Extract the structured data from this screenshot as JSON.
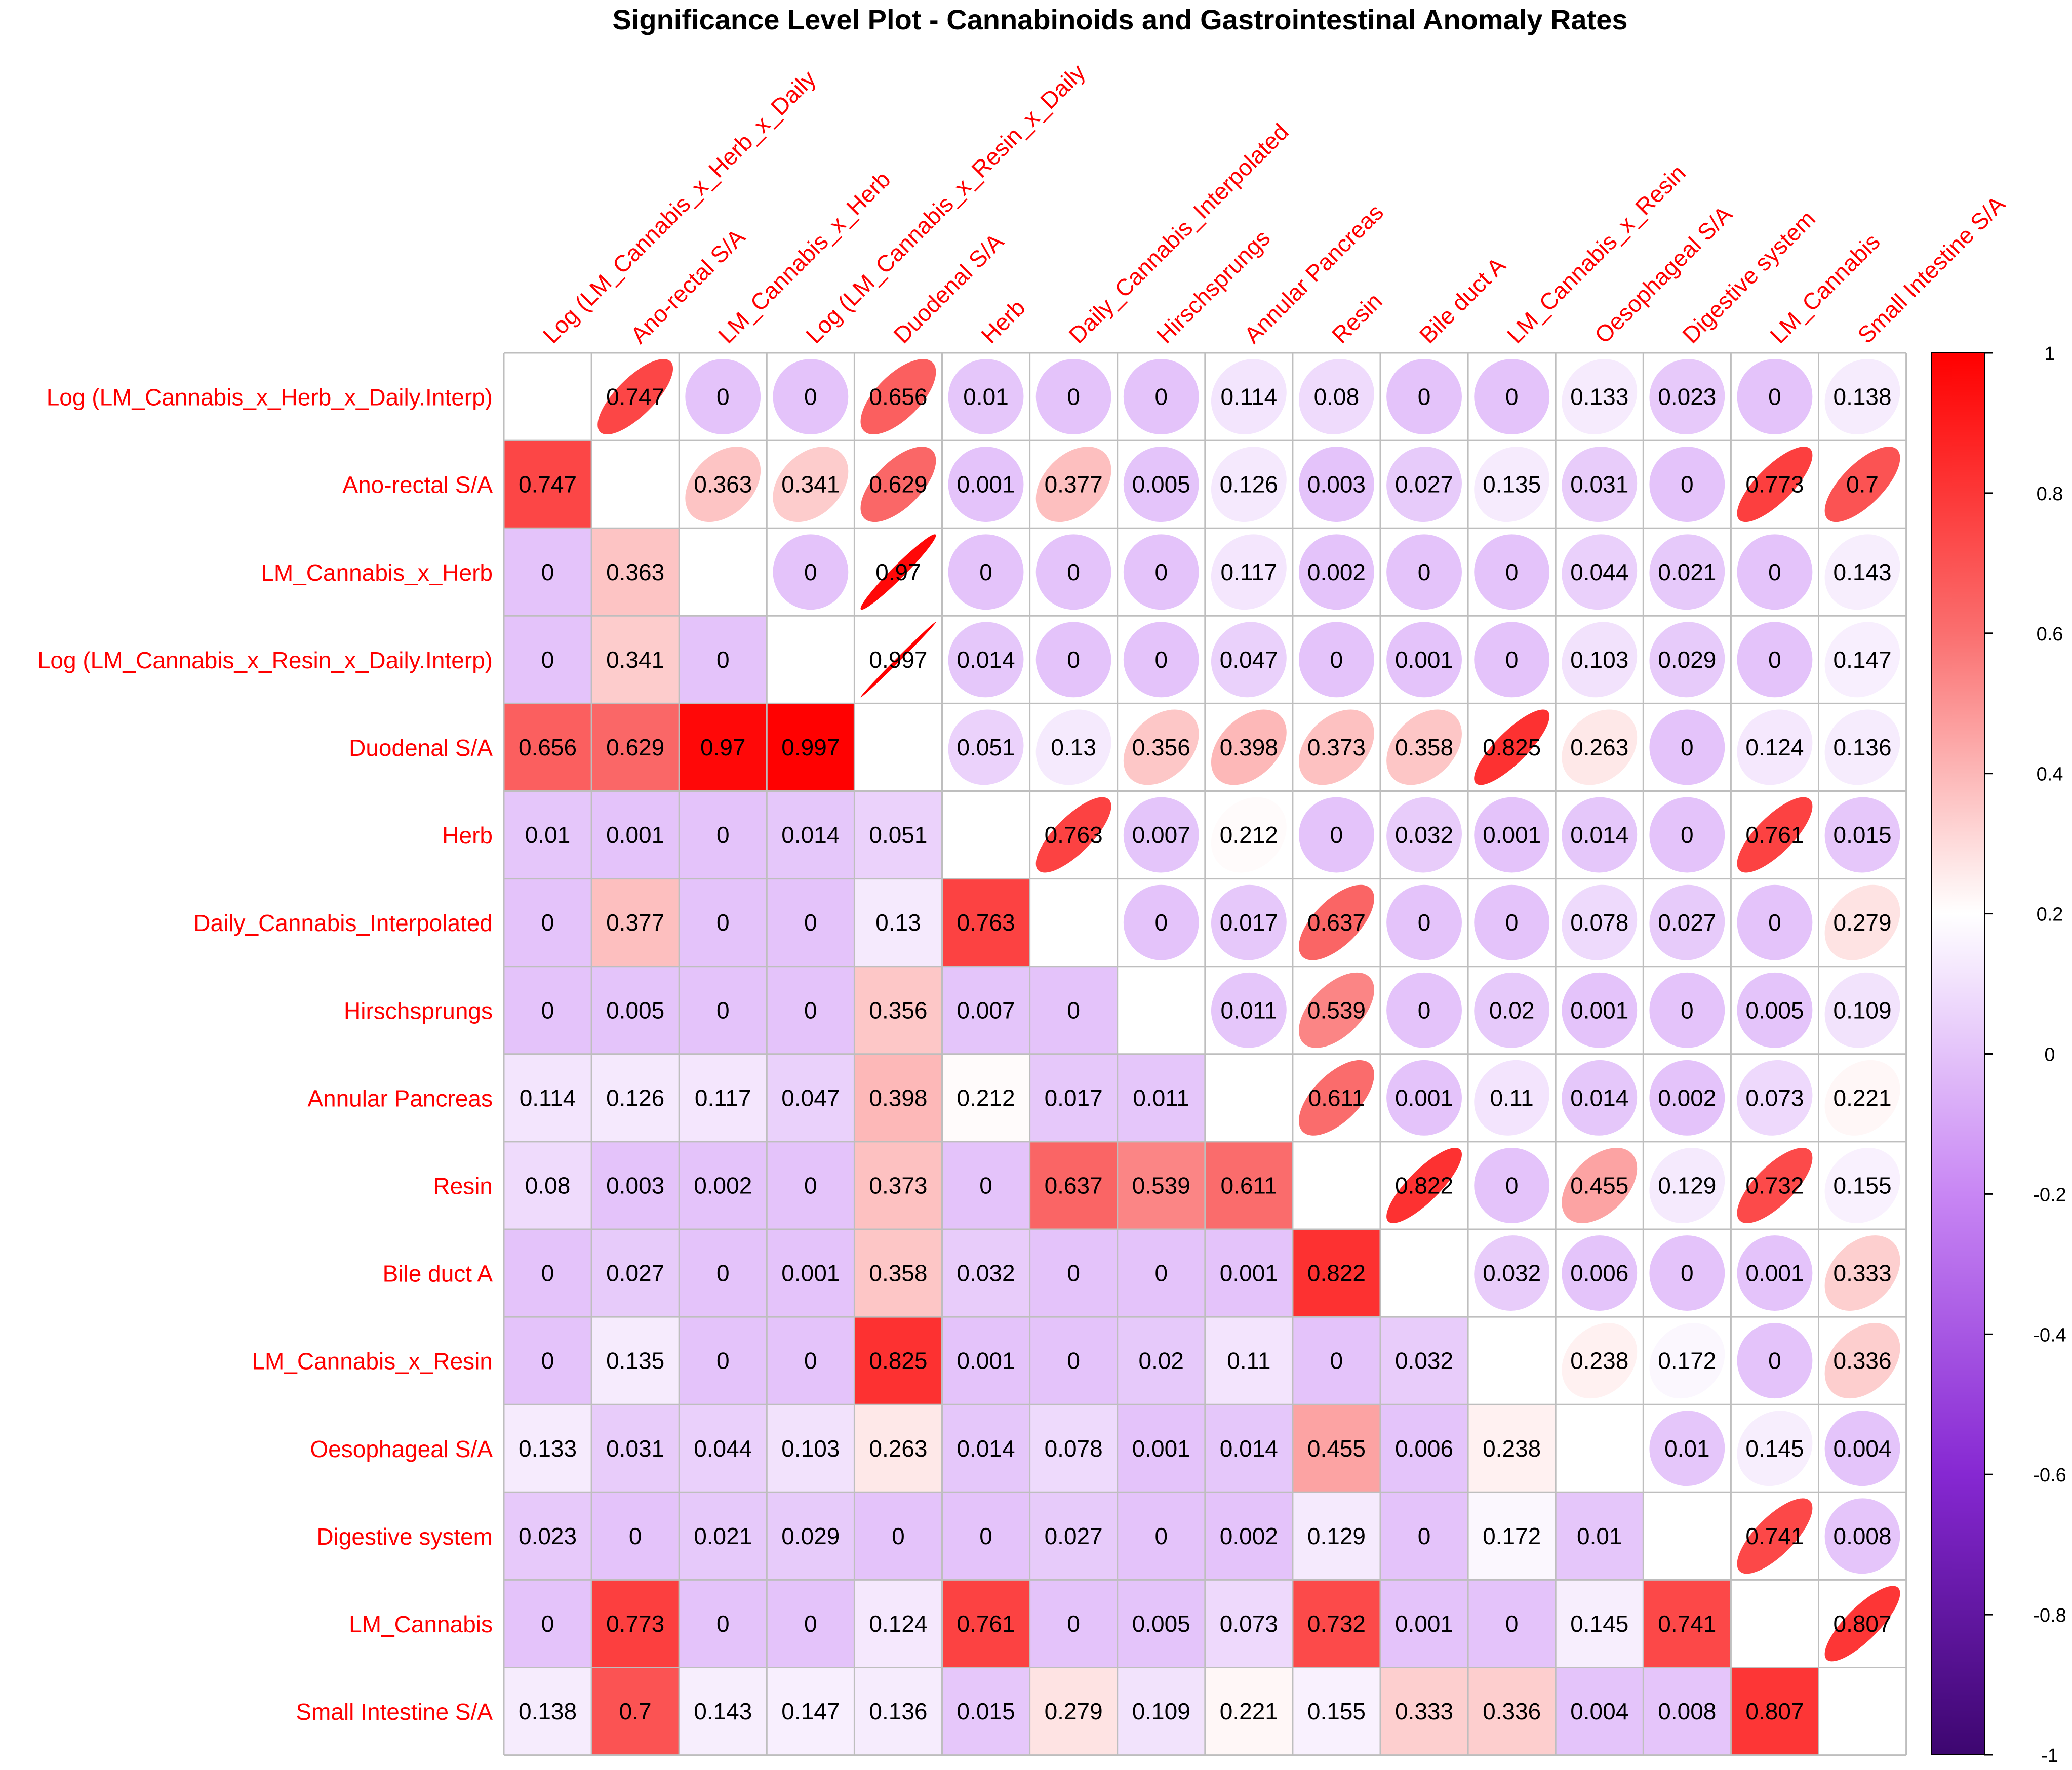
{
  "chart_data": {
    "type": "heatmap",
    "title": "Significance Level Plot - Cannabinoids and Gastrointestinal Anomaly Rates",
    "variables": [
      "Log (LM_Cannabis_x_Herb_x_Daily.Interp)",
      "Ano-rectal S/A",
      "LM_Cannabis_x_Herb",
      "Log (LM_Cannabis_x_Resin_x_Daily.Interp)",
      "Duodenal S/A",
      "Herb",
      "Daily_Cannabis_Interpolated",
      "Hirschsprungs",
      "Annular Pancreas",
      "Resin",
      "Bile duct A",
      "LM_Cannabis_x_Resin",
      "Oesophageal S/A",
      "Digestive system",
      "LM_Cannabis",
      "Small Intestine S/A"
    ],
    "column_labels": [
      "Log (LM_Cannabis_x_Herb_x_Daily",
      "Ano-rectal S/A",
      "LM_Cannabis_x_Herb",
      "Log (LM_Cannabis_x_Resin_x_Daily",
      "Duodenal S/A",
      "Herb",
      "Daily_Cannabis_Interpolated",
      "Hirschsprungs",
      "Annular Pancreas",
      "Resin",
      "Bile duct A",
      "LM_Cannabis_x_Resin",
      "Oesophageal S/A",
      "Digestive system",
      "LM_Cannabis",
      "Small Intestine S/A"
    ],
    "values": [
      [
        null,
        0.747,
        0,
        0,
        0.656,
        0.01,
        0,
        0,
        0.114,
        0.08,
        0,
        0,
        0.133,
        0.023,
        0,
        0.138
      ],
      [
        0.747,
        null,
        0.363,
        0.341,
        0.629,
        0.001,
        0.377,
        0.005,
        0.126,
        0.003,
        0.027,
        0.135,
        0.031,
        0,
        0.773,
        0.7
      ],
      [
        0,
        0.363,
        null,
        0,
        0.97,
        0,
        0,
        0,
        0.117,
        0.002,
        0,
        0,
        0.044,
        0.021,
        0,
        0.143
      ],
      [
        0,
        0.341,
        0,
        null,
        0.997,
        0.014,
        0,
        0,
        0.047,
        0,
        0.001,
        0,
        0.103,
        0.029,
        0,
        0.147
      ],
      [
        0.656,
        0.629,
        0.97,
        0.997,
        null,
        0.051,
        0.13,
        0.356,
        0.398,
        0.373,
        0.358,
        0.825,
        0.263,
        0,
        0.124,
        0.136
      ],
      [
        0.01,
        0.001,
        0,
        0.014,
        0.051,
        null,
        0.763,
        0.007,
        0.212,
        0,
        0.032,
        0.001,
        0.014,
        0,
        0.761,
        0.015
      ],
      [
        0,
        0.377,
        0,
        0,
        0.13,
        0.763,
        null,
        0,
        0.017,
        0.637,
        0,
        0,
        0.078,
        0.027,
        0,
        0.279
      ],
      [
        0,
        0.005,
        0,
        0,
        0.356,
        0.007,
        0,
        null,
        0.011,
        0.539,
        0,
        0.02,
        0.001,
        0,
        0.005,
        0.109
      ],
      [
        0.114,
        0.126,
        0.117,
        0.047,
        0.398,
        0.212,
        0.017,
        0.011,
        null,
        0.611,
        0.001,
        0.11,
        0.014,
        0.002,
        0.073,
        0.221
      ],
      [
        0.08,
        0.003,
        0.002,
        0,
        0.373,
        0,
        0.637,
        0.539,
        0.611,
        null,
        0.822,
        0,
        0.455,
        0.129,
        0.732,
        0.155
      ],
      [
        0,
        0.027,
        0,
        0.001,
        0.358,
        0.032,
        0,
        0,
        0.001,
        0.822,
        null,
        0.032,
        0.006,
        0,
        0.001,
        0.333
      ],
      [
        0,
        0.135,
        0,
        0,
        0.825,
        0.001,
        0,
        0.02,
        0.11,
        0,
        0.032,
        null,
        0.238,
        0.172,
        0,
        0.336
      ],
      [
        0.133,
        0.031,
        0.044,
        0.103,
        0.263,
        0.014,
        0.078,
        0.001,
        0.014,
        0.455,
        0.006,
        0.238,
        null,
        0.01,
        0.145,
        0.004
      ],
      [
        0.023,
        0,
        0.021,
        0.029,
        0,
        0,
        0.027,
        0,
        0.002,
        0.129,
        0,
        0.172,
        0.01,
        null,
        0.741,
        0.008
      ],
      [
        0,
        0.773,
        0,
        0,
        0.124,
        0.761,
        0,
        0.005,
        0.073,
        0.732,
        0.001,
        0,
        0.145,
        0.741,
        null,
        0.807
      ],
      [
        0.138,
        0.7,
        0.143,
        0.147,
        0.136,
        0.015,
        0.279,
        0.109,
        0.221,
        0.155,
        0.333,
        0.336,
        0.004,
        0.008,
        0.807,
        null
      ]
    ],
    "upper_triangle": "ellipse",
    "lower_triangle": "shade",
    "color_scale": {
      "min": -1,
      "max": 1,
      "ticks": [
        "1",
        "0.8",
        "0.6",
        "0.4",
        "0.2",
        "0",
        "-0.2",
        "-0.4",
        "-0.6",
        "-0.8",
        "-1"
      ],
      "colors": [
        "#3d0670",
        "#8628d2",
        "#c886f4",
        "#ffffff",
        "#fa6f6f",
        "#ff0000"
      ]
    }
  }
}
